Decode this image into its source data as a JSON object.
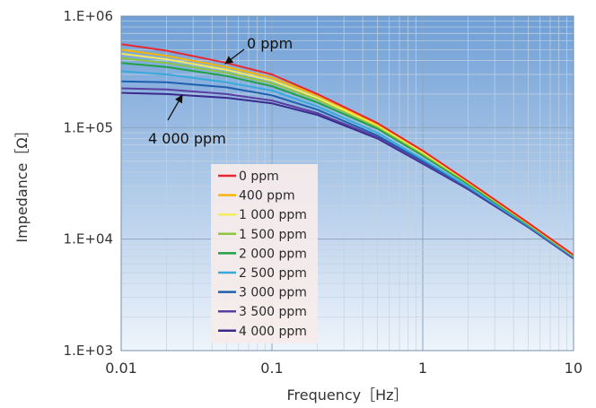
{
  "chart_data": {
    "type": "line",
    "title": "",
    "xlabel": "Frequency［Hz］",
    "ylabel": "Impedance［Ω］",
    "xscale": "log",
    "yscale": "log",
    "xlim": [
      0.01,
      10
    ],
    "ylim": [
      1000,
      1000000
    ],
    "x_ticks": [
      "0.01",
      "0.1",
      "1",
      "10"
    ],
    "y_ticks": [
      "1.E+03",
      "1.E+04",
      "1.E+05",
      "1.E+06"
    ],
    "grid": true,
    "legend_position": "center-left",
    "x": [
      0.01,
      0.02,
      0.05,
      0.1,
      0.2,
      0.5,
      1,
      2,
      5,
      10
    ],
    "series": [
      {
        "name": "0 ppm",
        "color": "#e8282e",
        "values": [
          560000,
          490000,
          380000,
          300000,
          200000,
          110000,
          62000,
          33000,
          14000,
          7200
        ]
      },
      {
        "name": "400 ppm",
        "color": "#f7b500",
        "values": [
          500000,
          440000,
          350000,
          280000,
          195000,
          108000,
          62000,
          33000,
          14000,
          7200
        ]
      },
      {
        "name": "1 000 ppm",
        "color": "#f4ea5a",
        "values": [
          460000,
          410000,
          330000,
          265000,
          185000,
          105000,
          60000,
          32500,
          13800,
          7100
        ]
      },
      {
        "name": "1 500 ppm",
        "color": "#8cc63e",
        "values": [
          420000,
          380000,
          310000,
          250000,
          178000,
          102000,
          58000,
          32000,
          13700,
          7100
        ]
      },
      {
        "name": "2 000 ppm",
        "color": "#22a046",
        "values": [
          380000,
          350000,
          290000,
          235000,
          168000,
          98000,
          56000,
          31000,
          13500,
          7000
        ]
      },
      {
        "name": "2 500 ppm",
        "color": "#39a9dc",
        "values": [
          320000,
          300000,
          255000,
          215000,
          155000,
          90000,
          52000,
          29500,
          13200,
          6900
        ]
      },
      {
        "name": "3 000 ppm",
        "color": "#1e5fae",
        "values": [
          260000,
          255000,
          230000,
          195000,
          145000,
          85000,
          50000,
          29000,
          13000,
          6800
        ]
      },
      {
        "name": "3 500 ppm",
        "color": "#5a3fa0",
        "values": [
          225000,
          220000,
          200000,
          175000,
          135000,
          82000,
          48500,
          28500,
          12900,
          6700
        ]
      },
      {
        "name": "4 000 ppm",
        "color": "#3a2a8c",
        "values": [
          205000,
          200000,
          185000,
          165000,
          130000,
          80000,
          47500,
          28000,
          12800,
          6700
        ]
      }
    ],
    "annotations": [
      {
        "text": "0 ppm",
        "arrow_to_series": "0 ppm"
      },
      {
        "text": "4 000 ppm",
        "arrow_to_series": "4 000 ppm"
      }
    ]
  }
}
